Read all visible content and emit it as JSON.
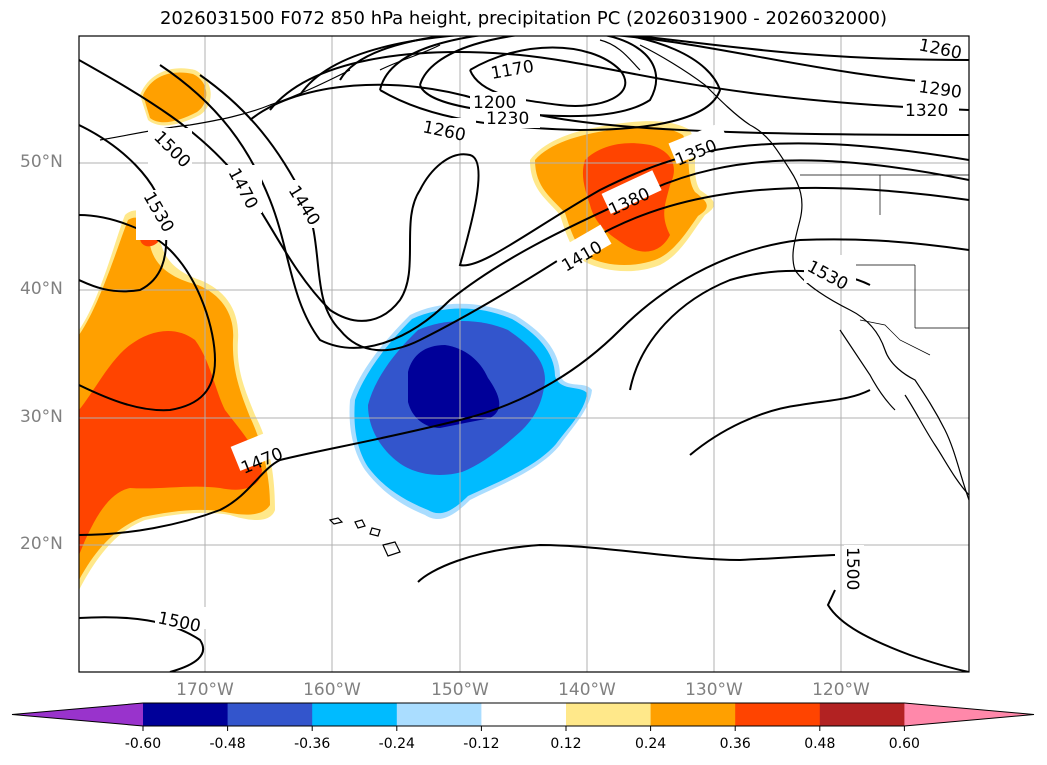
{
  "title": "2026031500 F072 850 hPa height, precipitation PC (2026031900 - 2026032000)",
  "map": {
    "lat_labels": [
      "50°N",
      "40°N",
      "30°N",
      "20°N"
    ],
    "lon_labels": [
      "170°W",
      "160°W",
      "150°W",
      "140°W",
      "130°W",
      "120°W"
    ],
    "contour_labels": [
      "1170",
      "1200",
      "1230",
      "1260",
      "1260",
      "1290",
      "1320",
      "1350",
      "1380",
      "1410",
      "1440",
      "1470",
      "1470",
      "1500",
      "1500",
      "1500",
      "1530",
      "1530"
    ]
  },
  "colorbar": {
    "tick_labels": [
      "-0.60",
      "-0.48",
      "-0.36",
      "-0.24",
      "-0.12",
      "0.12",
      "0.24",
      "0.36",
      "0.48",
      "0.60"
    ],
    "colors": [
      "#9933cc",
      "#000099",
      "#3355cc",
      "#00bbff",
      "#aaddff",
      "#ffffff",
      "#ffe88a",
      "#ffa000",
      "#ff4400",
      "#b22222",
      "#ff88aa"
    ]
  }
}
